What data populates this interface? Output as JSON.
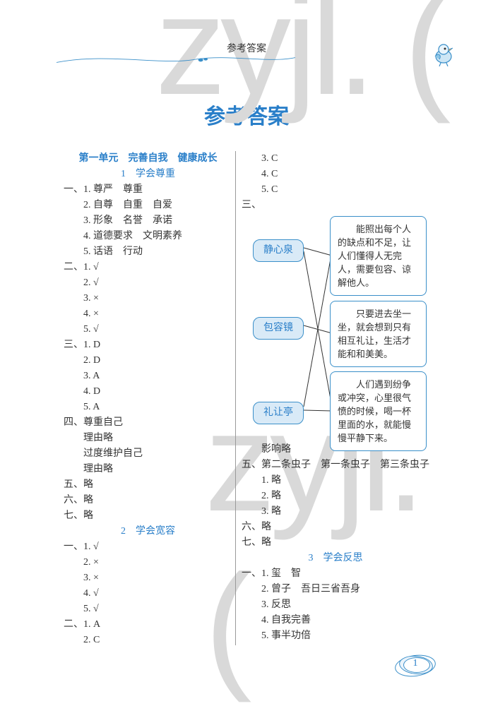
{
  "watermarks": {
    "wm1": "zyjl. (",
    "wm2": "zyjl. ("
  },
  "header": {
    "small_title": "参考答案"
  },
  "main_title": "参考答案",
  "page_number": "1",
  "colors": {
    "accent": "#2a7fc9",
    "pill_bg": "#d9eaf7",
    "pill_border": "#3a8fc9",
    "box_border": "#3a8fc9",
    "watermark": "#d9d9d9"
  },
  "left": {
    "unit_title": "第一单元　完善自我　健康成长",
    "s1_title": "1　学会尊重",
    "s1": [
      "一、1. 尊严　尊重",
      "　　2. 自尊　自重　自爱",
      "　　3. 形象　名誉　承诺",
      "　　4. 道德要求　文明素养",
      "　　5. 话语　行动",
      "二、1. √",
      "　　2. √",
      "　　3. ×",
      "　　4. ×",
      "　　5. √",
      "三、1. D",
      "　　2. D",
      "　　3. A",
      "　　4. D",
      "　　5. A",
      "四、尊重自己",
      "　　理由略",
      "　　过度维护自己",
      "　　理由略",
      "五、略",
      "六、略",
      "七、略"
    ],
    "s2_title": "2　学会宽容",
    "s2": [
      "一、1. √",
      "　　2. ×",
      "　　3. ×",
      "　　4. √",
      "　　5. √",
      "二、1. A",
      "　　2. C"
    ]
  },
  "right": {
    "top": [
      "　　3. C",
      "　　4. C",
      "　　5. C",
      "三、"
    ],
    "diagram": {
      "pill1": "静心泉",
      "pill2": "包容镜",
      "pill3": "礼让亭",
      "box1": "能照出每个人的缺点和不足，让人们懂得人无完人，需要包容、谅解他人。",
      "box2": "只要进去坐一坐，就会想到只有相互礼让，生活才能和和美美。",
      "box3": "人们遇到纷争或冲突，心里很气愤的时候，喝一杯里面的水，就能慢慢平静下来。"
    },
    "mid": [
      "　　影响略",
      "五、第二条虫子　第一条虫子　第三条虫子",
      "　　1. 略",
      "　　2. 略",
      "　　3. 略",
      "六、略",
      "七、略"
    ],
    "s3_title": "3　学会反思",
    "s3": [
      "一、1. 玺　智",
      "　　2. 曾子　吾日三省吾身",
      "　　3. 反思",
      "　　4. 自我完善",
      "　　5. 事半功倍"
    ]
  }
}
